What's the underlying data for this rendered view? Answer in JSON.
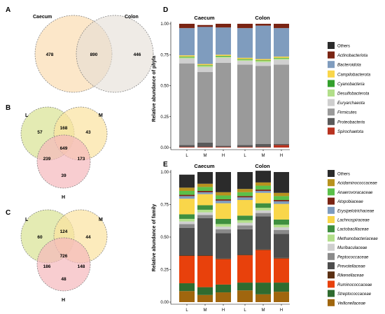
{
  "venns": [
    {
      "panel": "A",
      "sets": [
        "Caecum",
        "Colon"
      ],
      "regions": {
        "only_caecum": 478,
        "shared": 890,
        "only_colon": 446
      },
      "colors": [
        "#fbe3c0",
        "#e4ddd6"
      ]
    },
    {
      "panel": "B",
      "sets": [
        "L",
        "M",
        "H"
      ],
      "regions": {
        "L": 57,
        "M": 43,
        "H": 39,
        "LM": 168,
        "LH": 239,
        "MH": 173,
        "LMH": 649
      },
      "colors": [
        "#dfe7a6",
        "#fbe3a0",
        "#f5b8bc"
      ]
    },
    {
      "panel": "C",
      "sets": [
        "L",
        "M",
        "H"
      ],
      "regions": {
        "L": 60,
        "M": 44,
        "H": 48,
        "LM": 124,
        "LH": 186,
        "MH": 148,
        "LMH": 726
      },
      "colors": [
        "#dfe7a6",
        "#fbe3a0",
        "#f5b8bc"
      ]
    }
  ],
  "chart_data": [
    {
      "panel": "D",
      "type": "bar",
      "stacked": true,
      "ylabel": "Relative abundance of phyla",
      "ylim": [
        0,
        1
      ],
      "yticks": [
        "0.00",
        "0.25",
        "0.50",
        "0.75",
        "1.00"
      ],
      "facets": [
        "Caecum",
        "Colon"
      ],
      "categories": [
        "L",
        "M",
        "H"
      ],
      "legend_position": "right",
      "series": [
        {
          "name": "Spirochaetota",
          "color": "#b8321f",
          "values": [
            [
              0.005,
              0.005,
              0.005
            ],
            [
              0.005,
              0.005,
              0.02
            ]
          ]
        },
        {
          "name": "Proteobacteria",
          "color": "#5a5a5a",
          "values": [
            [
              0.015,
              0.035,
              0.01
            ],
            [
              0.015,
              0.025,
              0.01
            ]
          ]
        },
        {
          "name": "Firmicutes",
          "color": "#9a9a9a",
          "values": [
            [
              0.66,
              0.57,
              0.67
            ],
            [
              0.65,
              0.63,
              0.64
            ]
          ]
        },
        {
          "name": "Euryarchaeota",
          "color": "#cfcfcf",
          "values": [
            [
              0.04,
              0.04,
              0.04
            ],
            [
              0.03,
              0.03,
              0.04
            ]
          ]
        },
        {
          "name": "Desulfobacterota",
          "color": "#b2df8a",
          "values": [
            [
              0.01,
              0.01,
              0.01
            ],
            [
              0.01,
              0.01,
              0.01
            ]
          ]
        },
        {
          "name": "Cyanobacteria",
          "color": "#33a02c",
          "values": [
            [
              0.005,
              0.005,
              0.005
            ],
            [
              0.005,
              0.005,
              0.005
            ]
          ]
        },
        {
          "name": "Campilobacterota",
          "color": "#f9d64a",
          "values": [
            [
              0.01,
              0.01,
              0.01
            ],
            [
              0.01,
              0.01,
              0.01
            ]
          ]
        },
        {
          "name": "Bacteroidota",
          "color": "#7f9cbe",
          "values": [
            [
              0.22,
              0.3,
              0.22
            ],
            [
              0.24,
              0.27,
              0.23
            ]
          ]
        },
        {
          "name": "Actinobacteriota",
          "color": "#7a2413",
          "values": [
            [
              0.035,
              0.015,
              0.03
            ],
            [
              0.035,
              0.015,
              0.035
            ]
          ]
        },
        {
          "name": "Others",
          "color": "#2b2b2b",
          "values": [
            [
              0.0,
              0.0,
              0.0
            ],
            [
              0.0,
              0.0,
              0.0
            ]
          ]
        }
      ]
    },
    {
      "panel": "E",
      "type": "bar",
      "stacked": true,
      "ylabel": "Relative abundance of family",
      "ylim": [
        0,
        1
      ],
      "yticks": [
        "0.00",
        "0.25",
        "0.50",
        "0.75",
        "1.00"
      ],
      "facets": [
        "Caecum",
        "Colon"
      ],
      "categories": [
        "L",
        "M",
        "H"
      ],
      "legend_position": "right",
      "series": [
        {
          "name": "Veillonellaceae",
          "color": "#a0660e",
          "values": [
            [
              0.085,
              0.055,
              0.075
            ],
            [
              0.09,
              0.06,
              0.08
            ]
          ]
        },
        {
          "name": "Streptococcaceae",
          "color": "#2f6b2f",
          "values": [
            [
              0.06,
              0.06,
              0.06
            ],
            [
              0.06,
              0.09,
              0.07
            ]
          ]
        },
        {
          "name": "Ruminococcaceae",
          "color": "#e8410c",
          "values": [
            [
              0.21,
              0.24,
              0.195
            ],
            [
              0.21,
              0.25,
              0.185
            ]
          ]
        },
        {
          "name": "Rikenellaceae",
          "color": "#5a2f12",
          "values": [
            [
              0.005,
              0.005,
              0.005
            ],
            [
              0.005,
              0.005,
              0.005
            ]
          ]
        },
        {
          "name": "Prevotellaceae",
          "color": "#4d4d4d",
          "values": [
            [
              0.21,
              0.285,
              0.195
            ],
            [
              0.195,
              0.255,
              0.185
            ]
          ]
        },
        {
          "name": "Peptococcaceae",
          "color": "#8a8a8a",
          "values": [
            [
              0.03,
              0.025,
              0.03
            ],
            [
              0.03,
              0.025,
              0.03
            ]
          ]
        },
        {
          "name": "Muribaculaceae",
          "color": "#cfcfcf",
          "values": [
            [
              0.02,
              0.02,
              0.02
            ],
            [
              0.02,
              0.02,
              0.02
            ]
          ]
        },
        {
          "name": "Methanobacteriaceae",
          "color": "#b2df8a",
          "values": [
            [
              0.02,
              0.02,
              0.02
            ],
            [
              0.02,
              0.02,
              0.02
            ]
          ]
        },
        {
          "name": "Lactobacillaceae",
          "color": "#3f8f3f",
          "values": [
            [
              0.035,
              0.035,
              0.04
            ],
            [
              0.035,
              0.035,
              0.04
            ]
          ]
        },
        {
          "name": "Lachnospiraceae",
          "color": "#f9d64a",
          "values": [
            [
              0.12,
              0.085,
              0.12
            ],
            [
              0.12,
              0.08,
              0.12
            ]
          ]
        },
        {
          "name": "Erysipelotrichaceae",
          "color": "#7f9cbe",
          "values": [
            [
              0.02,
              0.015,
              0.02
            ],
            [
              0.02,
              0.015,
              0.02
            ]
          ]
        },
        {
          "name": "Atopobiaceae",
          "color": "#7a2413",
          "values": [
            [
              0.01,
              0.01,
              0.01
            ],
            [
              0.01,
              0.01,
              0.01
            ]
          ]
        },
        {
          "name": "Anaerovoracaceae",
          "color": "#5bc04a",
          "values": [
            [
              0.03,
              0.03,
              0.03
            ],
            [
              0.03,
              0.03,
              0.03
            ]
          ]
        },
        {
          "name": "Acidaminococcaceae",
          "color": "#b8921e",
          "values": [
            [
              0.025,
              0.025,
              0.025
            ],
            [
              0.025,
              0.025,
              0.025
            ]
          ]
        },
        {
          "name": "Others",
          "color": "#2b2b2b",
          "values": [
            [
              0.1,
              0.09,
              0.155
            ],
            [
              0.13,
              0.09,
              0.16
            ]
          ]
        }
      ]
    }
  ]
}
